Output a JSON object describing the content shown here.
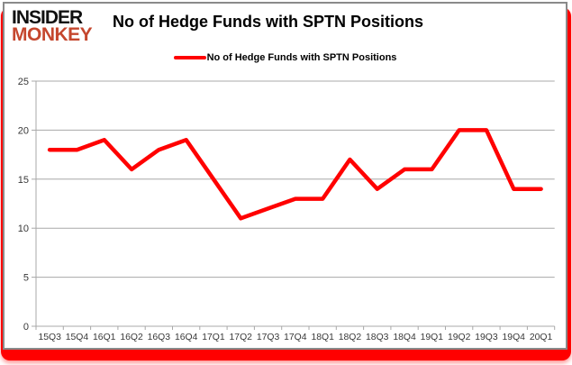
{
  "logo": {
    "line1": "INSIDER",
    "line2": "MONKEY"
  },
  "header": {
    "title": "No of Hedge Funds with SPTN Positions"
  },
  "legend": {
    "label": "No of Hedge Funds with SPTN Positions"
  },
  "colors": {
    "line": "#ff0000",
    "logo_black": "#111111",
    "logo_red": "#c5472e",
    "grid": "#a8a8a8",
    "axis_text": "#383838",
    "accent": "#ff0000",
    "card_border": "#8a8a8a"
  },
  "chart_data": {
    "type": "line",
    "title": "No of Hedge Funds with SPTN Positions",
    "categories": [
      "15Q3",
      "15Q4",
      "16Q1",
      "16Q2",
      "16Q3",
      "16Q4",
      "17Q1",
      "17Q2",
      "17Q3",
      "17Q4",
      "18Q1",
      "18Q2",
      "18Q3",
      "18Q4",
      "19Q1",
      "19Q2",
      "19Q3",
      "19Q4",
      "20Q1"
    ],
    "series": [
      {
        "name": "No of Hedge Funds with SPTN Positions",
        "color": "#ff0000",
        "values": [
          18,
          18,
          19,
          16,
          18,
          19,
          15,
          11,
          12,
          13,
          13,
          17,
          14,
          16,
          16,
          20,
          20,
          14,
          14
        ]
      }
    ],
    "xlabel": "",
    "ylabel": "",
    "ylim": [
      0,
      25
    ],
    "yticks": [
      0,
      5,
      10,
      15,
      20,
      25
    ],
    "grid": true,
    "legend_position": "top-center"
  }
}
